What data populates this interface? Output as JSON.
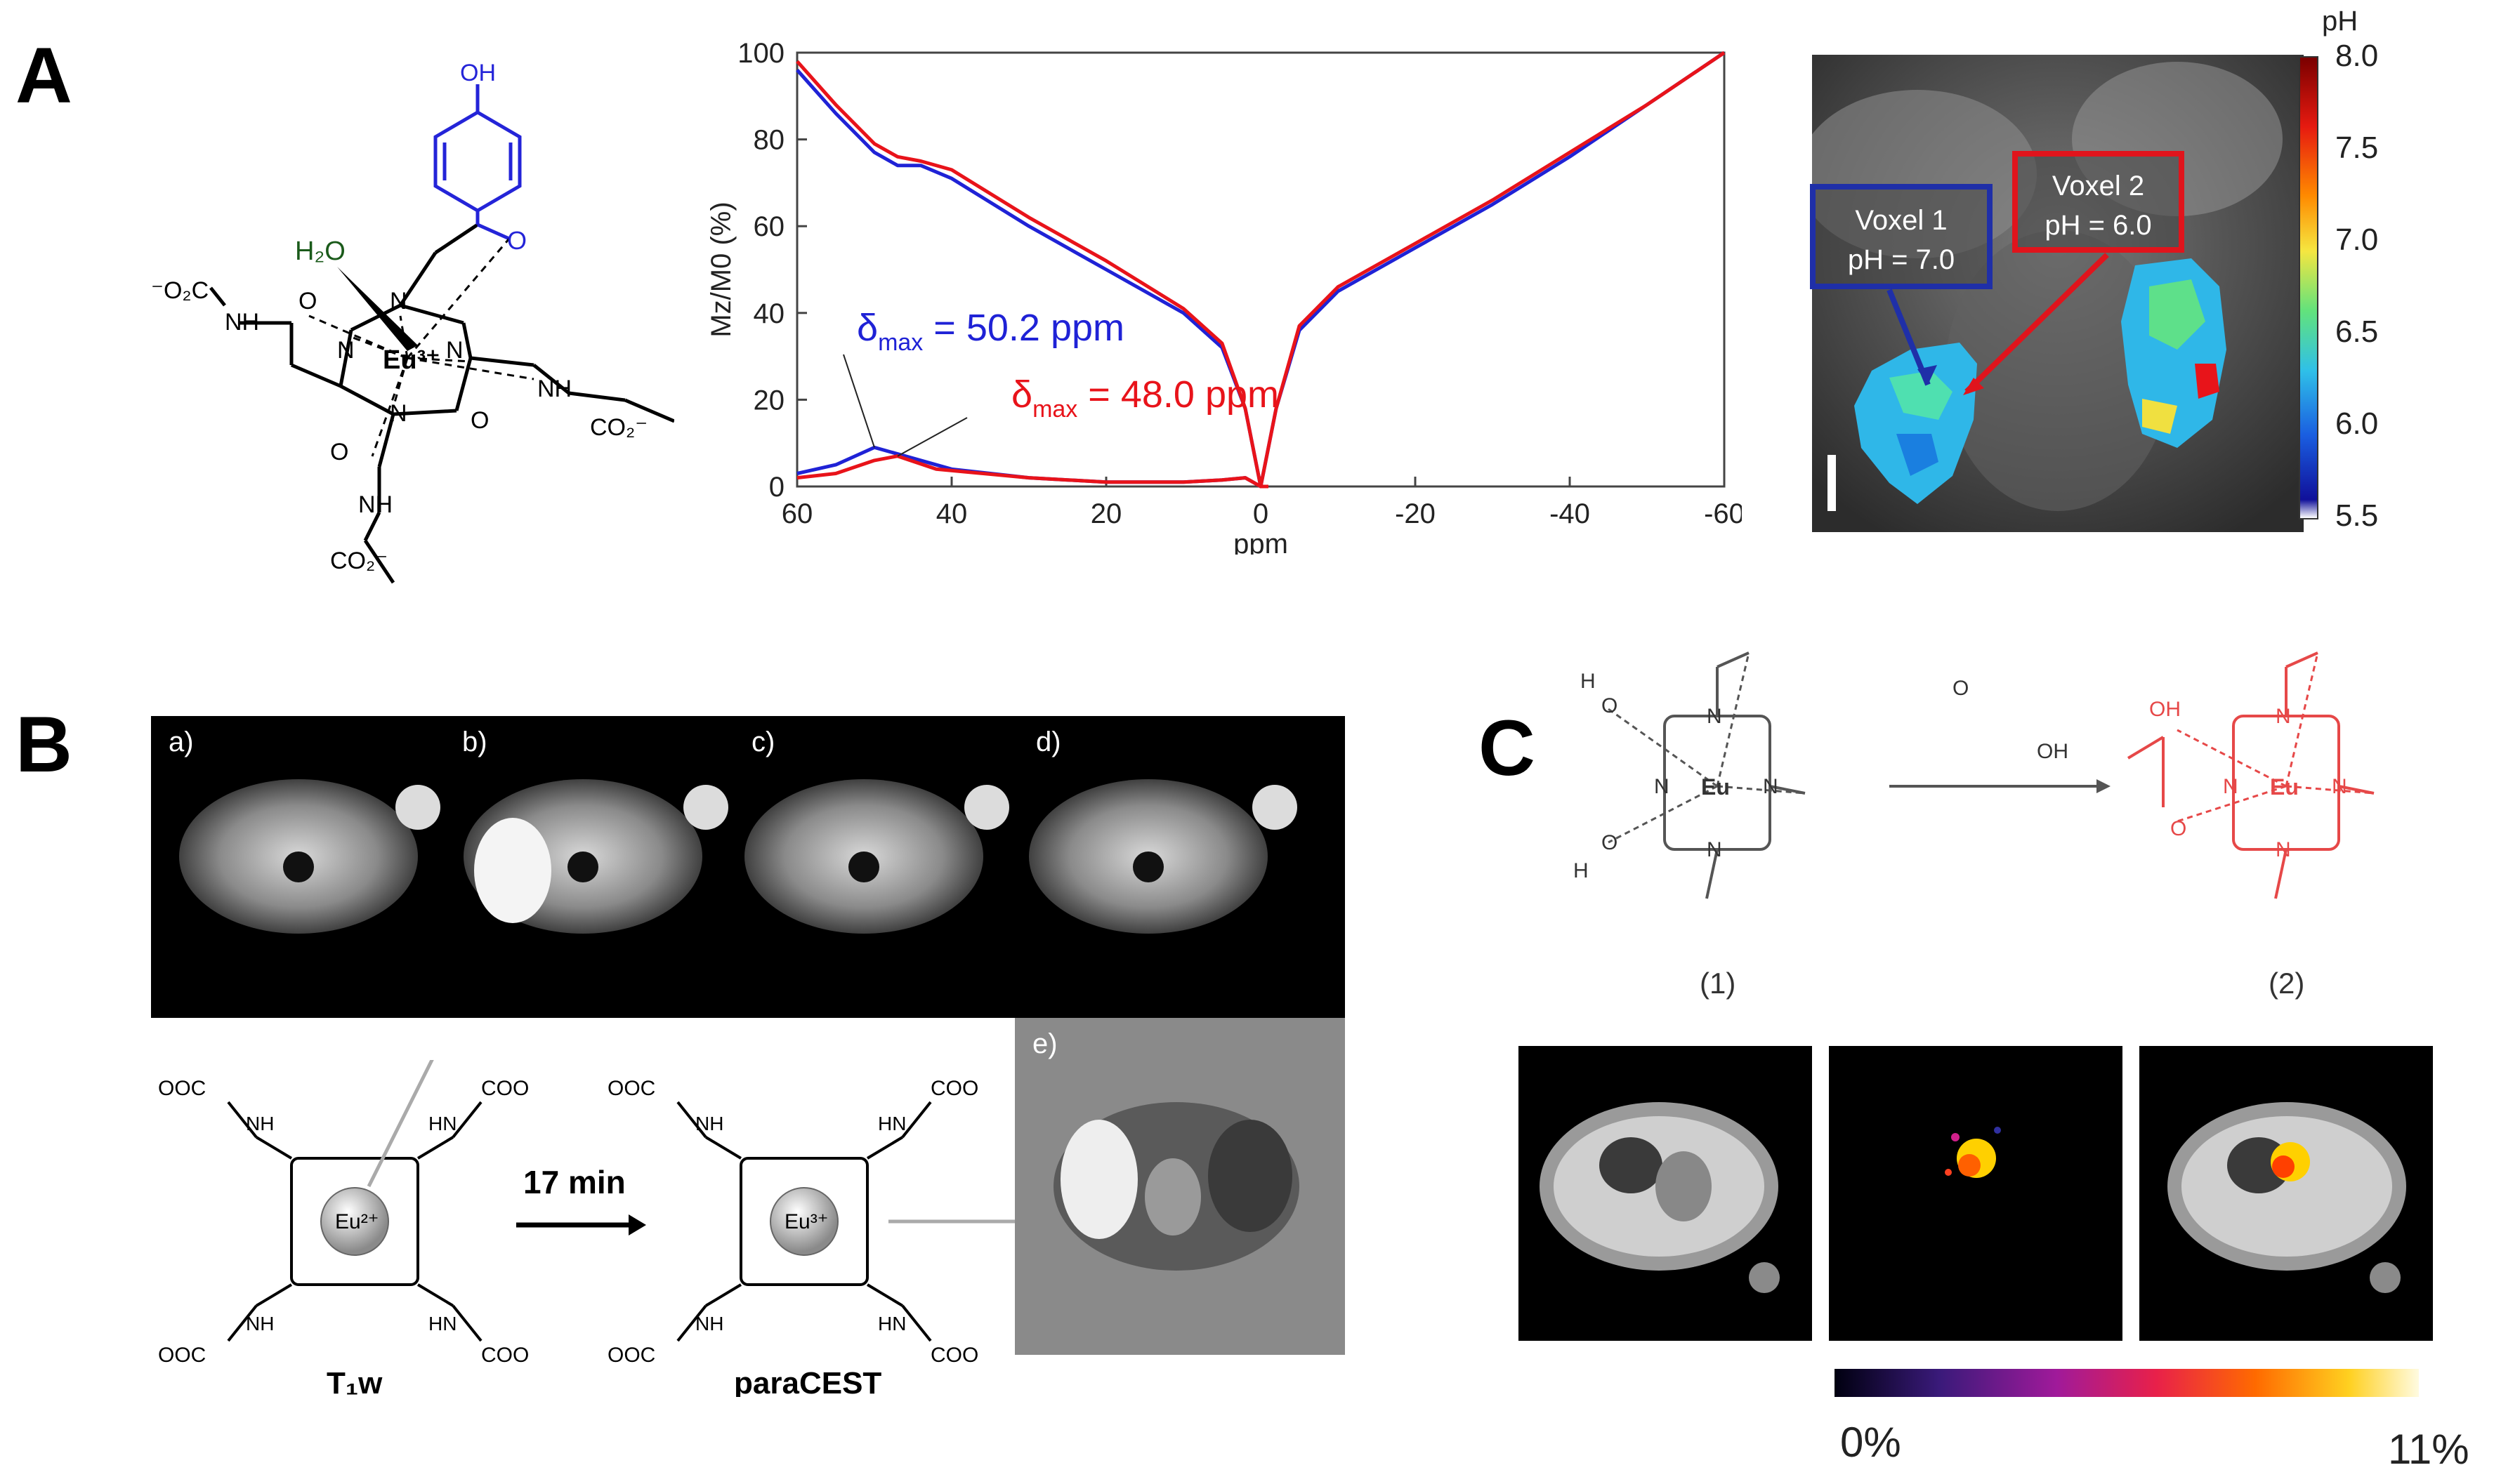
{
  "panels": {
    "A": "A",
    "B": "B",
    "C": "C"
  },
  "A": {
    "molecule": {
      "oh": "OH",
      "h2o": "H₂O",
      "o_carbonyl": "O",
      "eu": "Eu³⁺",
      "left_group": "⁻O₂C",
      "nh": "NH",
      "co2_right": "CO₂⁻",
      "co2_bottom": "CO₂⁻",
      "n": "N",
      "o": "O"
    },
    "colorbar": {
      "title": "pH",
      "ticks": [
        "8.0",
        "7.5",
        "7.0",
        "6.5",
        "6.0",
        "5.5"
      ]
    },
    "voxels": [
      {
        "line1": "Voxel  1",
        "line2": "pH  = 7.0",
        "color": "#1f2fa8"
      },
      {
        "line1": "Voxel 2",
        "line2": "pH = 6.0",
        "color": "#e0141c"
      }
    ]
  },
  "chart_data": {
    "type": "line",
    "title": "",
    "xlabel": "ppm",
    "ylabel": "Mz/M0 (%)",
    "xlim": [
      60,
      -60
    ],
    "ylim": [
      0,
      100
    ],
    "xticks": [
      "60",
      "40",
      "20",
      "0",
      "-20",
      "-40",
      "-60"
    ],
    "yticks": [
      "0",
      "20",
      "40",
      "60",
      "80",
      "100"
    ],
    "series": [
      {
        "name": "δmax = 50.2 ppm",
        "color": "#1f22d6",
        "x": [
          60,
          55,
          50,
          47,
          44,
          40,
          30,
          20,
          10,
          5,
          2,
          0,
          -2,
          -5,
          -10,
          -20,
          -30,
          -40,
          -50,
          -60
        ],
        "y": [
          96,
          86,
          77,
          74,
          74,
          71,
          60,
          50,
          40,
          32,
          18,
          0,
          18,
          36,
          45,
          55,
          65,
          76,
          88,
          100
        ]
      },
      {
        "name": "δmax = 48.0 ppm",
        "color": "#e8131a",
        "x": [
          60,
          55,
          50,
          47,
          44,
          40,
          30,
          20,
          10,
          5,
          2,
          0,
          -2,
          -5,
          -10,
          -20,
          -30,
          -40,
          -50,
          -60
        ],
        "y": [
          98,
          88,
          79,
          76,
          75,
          73,
          62,
          52,
          41,
          33,
          18,
          0,
          18,
          37,
          46,
          56,
          66,
          77,
          88,
          100
        ]
      },
      {
        "name": "",
        "color": "#1f22d6",
        "x": [
          60,
          55,
          50,
          46,
          40,
          30,
          20,
          10,
          5,
          2,
          0,
          -1
        ],
        "y": [
          3,
          5,
          9,
          7,
          4,
          2,
          1,
          1,
          1.5,
          2,
          0,
          0
        ]
      },
      {
        "name": "",
        "color": "#e8131a",
        "x": [
          60,
          55,
          50,
          47,
          42,
          30,
          20,
          10,
          5,
          2,
          0,
          -1
        ],
        "y": [
          2,
          3,
          6,
          7,
          4,
          2,
          1,
          1,
          1.5,
          2,
          0,
          0
        ]
      }
    ],
    "annotations": [
      {
        "prefix": "δ",
        "sub": "max",
        "rest": " = 50.2 ppm",
        "color": "#1f22d6"
      },
      {
        "prefix": "δ",
        "sub": "max",
        "rest": " = 48.0 ppm",
        "color": "#e8131a"
      }
    ]
  },
  "B": {
    "mri_labels": [
      "a)",
      "b)",
      "c)",
      "d)"
    ],
    "diff_label": "e)",
    "arrow_text": "17 min",
    "left_caption": "T₁w",
    "right_caption": "paraCEST",
    "eu_left": "Eu²⁺",
    "eu_right": "Eu³⁺",
    "ooc": "OOC",
    "coo": "COO",
    "nh": "NH",
    "hn": "HN",
    "n": "N",
    "o": "O",
    "minus": "⁻"
  },
  "C": {
    "label_1": "(1)",
    "label_2": "(2)",
    "eu": "Eu",
    "n": "N",
    "o": "O",
    "h": "H",
    "oh": "OH",
    "colorbar_min": "0%",
    "colorbar_max": "11%"
  }
}
